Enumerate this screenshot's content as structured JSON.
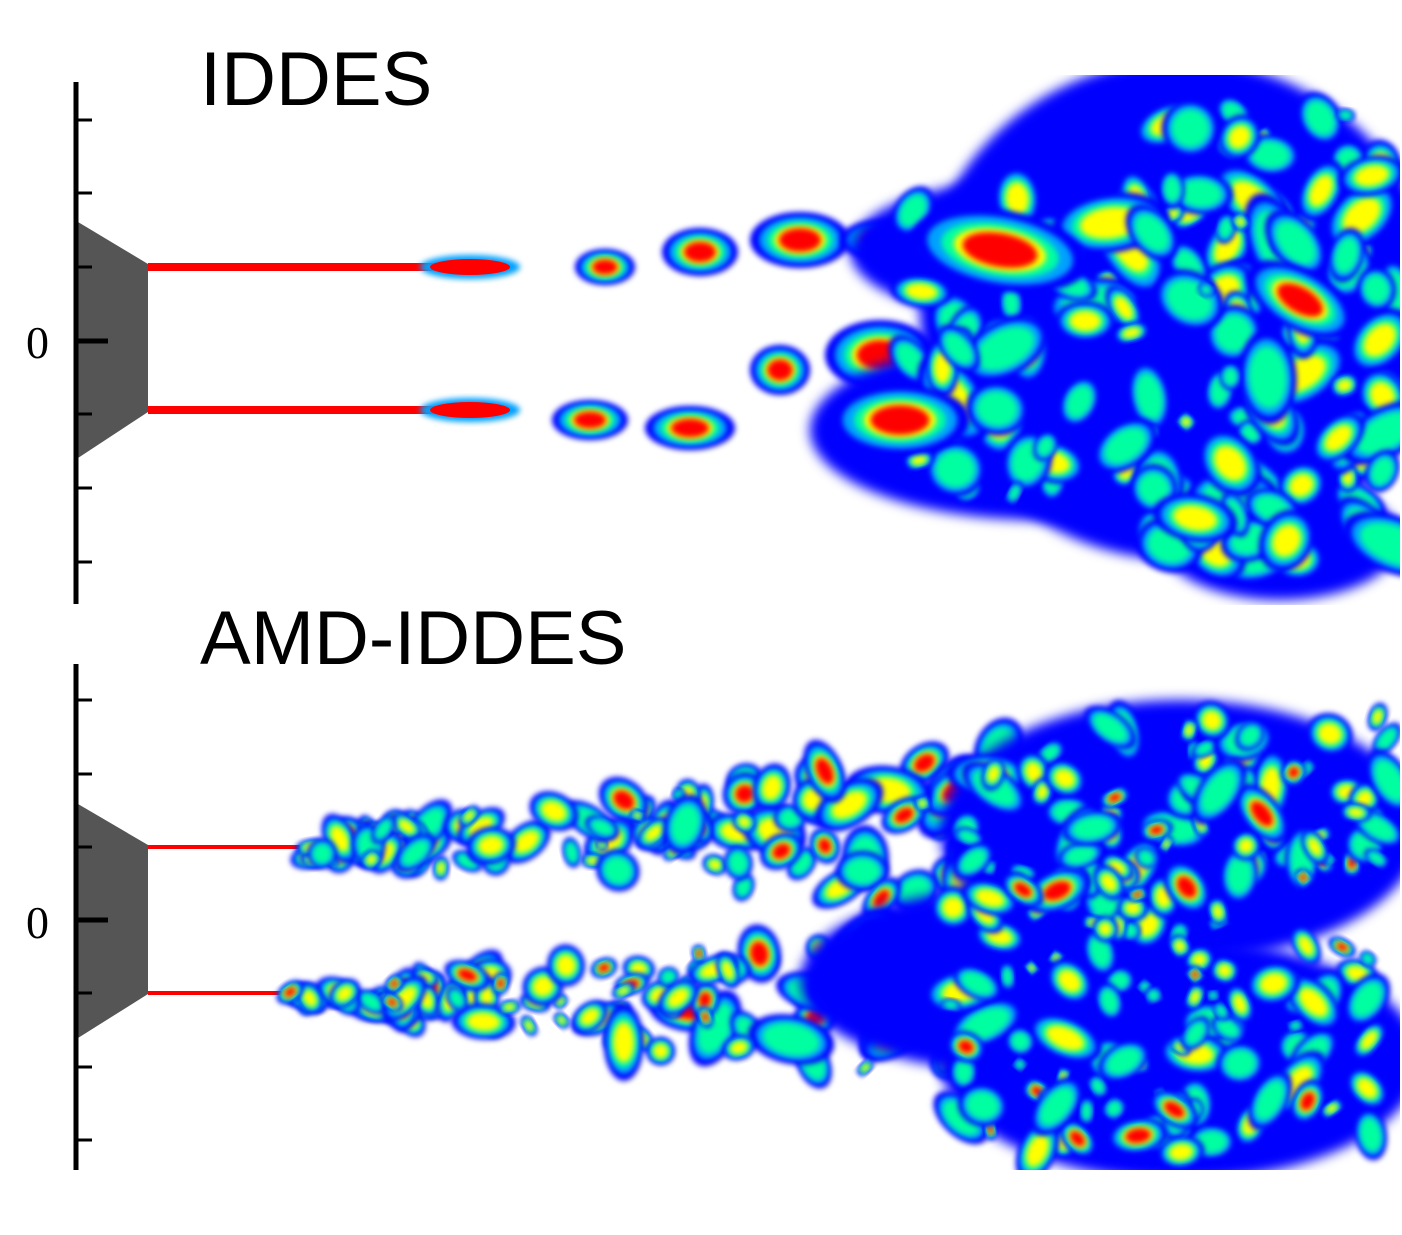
{
  "panels": [
    {
      "title": "IDDES",
      "y_tick_label": "0"
    },
    {
      "title": "AMD-IDDES",
      "y_tick_label": "0"
    }
  ],
  "colors": {
    "background": "#ffffff",
    "nozzle": "#555555",
    "axis": "#000000",
    "colormap": [
      "#0000ff",
      "#00a0ff",
      "#00ffa0",
      "#a0ff00",
      "#ffff00",
      "#ff0000"
    ]
  }
}
